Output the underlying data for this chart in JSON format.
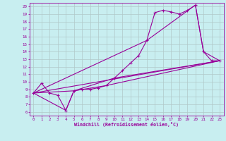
{
  "xlabel": "Windchill (Refroidissement éolien,°C)",
  "bg_color": "#c8eef0",
  "line_color": "#990099",
  "grid_color": "#b0c8c8",
  "xlim": [
    -0.5,
    23.5
  ],
  "ylim": [
    5.5,
    20.5
  ],
  "xticks": [
    0,
    1,
    2,
    3,
    4,
    5,
    6,
    7,
    8,
    9,
    10,
    11,
    12,
    13,
    14,
    15,
    16,
    17,
    18,
    19,
    20,
    21,
    22,
    23
  ],
  "yticks": [
    6,
    7,
    8,
    9,
    10,
    11,
    12,
    13,
    14,
    15,
    16,
    17,
    18,
    19,
    20
  ],
  "series": [
    [
      0,
      8.5
    ],
    [
      1,
      9.8
    ],
    [
      2,
      8.5
    ],
    [
      3,
      8.2
    ],
    [
      4,
      6.2
    ],
    [
      5,
      8.8
    ],
    [
      6,
      9.0
    ],
    [
      7,
      9.0
    ],
    [
      8,
      9.2
    ],
    [
      9,
      9.5
    ],
    [
      10,
      10.5
    ],
    [
      11,
      11.5
    ],
    [
      12,
      12.5
    ],
    [
      13,
      13.5
    ],
    [
      14,
      15.5
    ],
    [
      15,
      19.2
    ],
    [
      16,
      19.5
    ],
    [
      17,
      19.3
    ],
    [
      18,
      19.0
    ],
    [
      19,
      19.5
    ],
    [
      20,
      20.2
    ],
    [
      21,
      14.0
    ],
    [
      22,
      12.8
    ],
    [
      23,
      12.8
    ]
  ],
  "line_straight": [
    [
      0,
      8.5
    ],
    [
      23,
      12.8
    ]
  ],
  "line_upper": [
    [
      0,
      8.5
    ],
    [
      14,
      15.5
    ],
    [
      20,
      20.2
    ],
    [
      21,
      14.0
    ],
    [
      23,
      12.8
    ]
  ],
  "line_lower": [
    [
      0,
      8.5
    ],
    [
      4,
      6.2
    ],
    [
      5,
      8.8
    ],
    [
      9,
      9.5
    ],
    [
      23,
      12.8
    ]
  ],
  "line_mid": [
    [
      0,
      8.5
    ],
    [
      5,
      8.8
    ],
    [
      10,
      10.5
    ],
    [
      23,
      12.8
    ]
  ]
}
